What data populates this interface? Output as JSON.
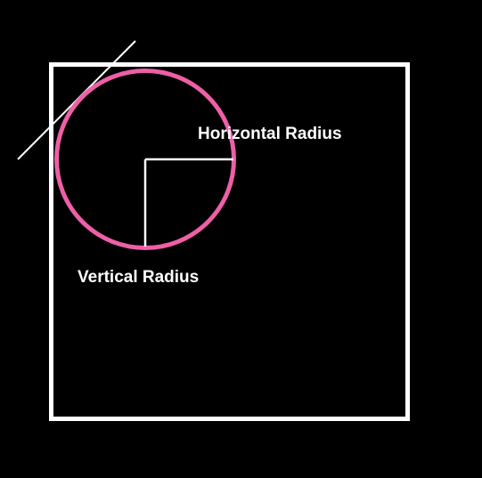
{
  "labels": {
    "horizontal_radius": "Horizontal Radius",
    "vertical_radius": "Vertical Radius"
  },
  "colors": {
    "background": "#000000",
    "box": "#ffffff",
    "circle": "#ee5fa7",
    "radius_lines": "#ffffff",
    "tangent_line": "#ffffff",
    "label_text": "#ffffff"
  }
}
